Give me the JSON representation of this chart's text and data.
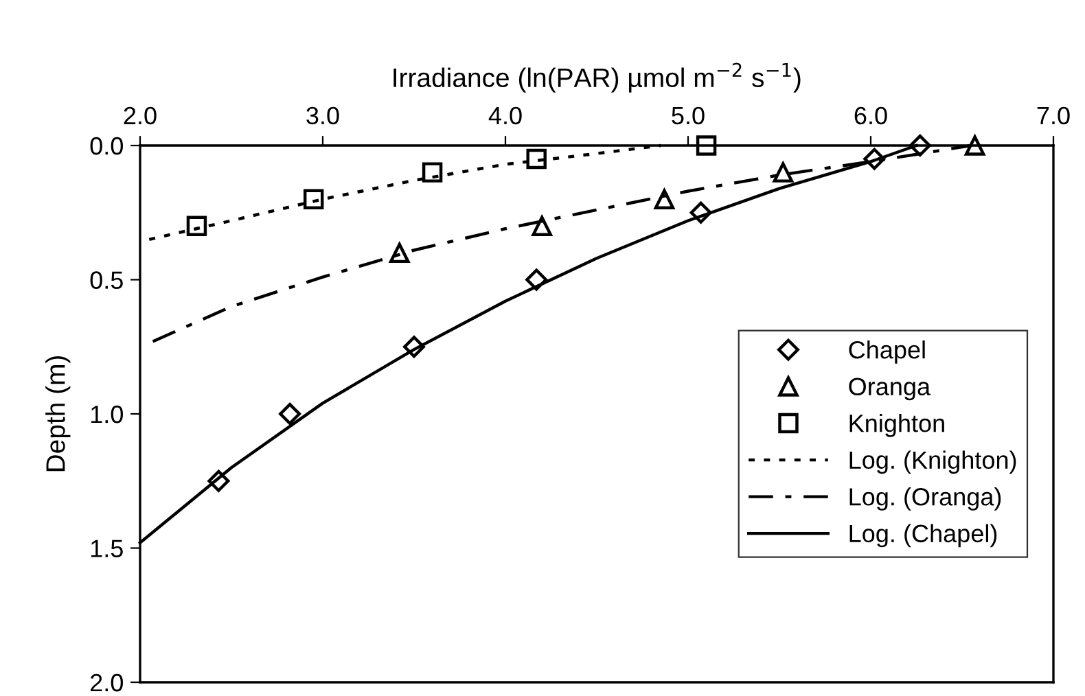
{
  "chart_data": {
    "type": "scatter",
    "xlabel": "Irradiance (ln(PAR) µmol m$^{−2}$ s$^{−1}$)",
    "ylabel": "Depth (m)",
    "xlim": [
      2.0,
      7.0
    ],
    "xticks": [
      {
        "value": 2,
        "label": "2.0"
      },
      {
        "value": 3,
        "label": "3.0"
      },
      {
        "value": 4,
        "label": "4.0"
      },
      {
        "value": 5,
        "label": "5.0"
      },
      {
        "value": 6,
        "label": "6.0"
      },
      {
        "value": 7,
        "label": "7.0"
      }
    ],
    "ylim": [
      2.0,
      0.0
    ],
    "yticks": [
      {
        "value": 0,
        "label": "0.0"
      },
      {
        "value": 0.5,
        "label": "0.5"
      },
      {
        "value": 1,
        "label": "1.0"
      },
      {
        "value": 1.5,
        "label": "1.5"
      },
      {
        "value": 2,
        "label": "2.0"
      }
    ],
    "grid": false,
    "legend": "bottom right",
    "series": [
      {
        "name": "Chapel",
        "marker": "diamond",
        "color": "#000000",
        "x": [
          2.43,
          2.82,
          3.5,
          4.17,
          5.07,
          6.02,
          6.27
        ],
        "values": [
          1.25,
          1.0,
          0.75,
          0.5,
          0.25,
          0.05,
          0.0
        ]
      },
      {
        "name": "Oranga",
        "marker": "triangle",
        "color": "#000000",
        "x": [
          3.42,
          4.2,
          4.87,
          5.52,
          6.57
        ],
        "values": [
          0.4,
          0.3,
          0.2,
          0.1,
          0.0
        ]
      },
      {
        "name": "Knighton",
        "marker": "square",
        "color": "#000000",
        "x": [
          2.31,
          2.95,
          3.6,
          4.17,
          5.1
        ],
        "values": [
          0.3,
          0.2,
          0.1,
          0.05,
          0.0
        ]
      },
      {
        "name": "Log. (Knighton)",
        "type": "line",
        "line_style": "dotted",
        "color": "#000000",
        "x": [
          2.05,
          2.5,
          3.0,
          3.5,
          4.0,
          4.5,
          4.85
        ],
        "values": [
          0.35,
          0.28,
          0.2,
          0.13,
          0.07,
          0.03,
          0.0
        ]
      },
      {
        "name": "Log. (Oranga)",
        "type": "line",
        "line_style": "dashdot",
        "color": "#000000",
        "x": [
          2.07,
          2.5,
          3.0,
          3.5,
          4.0,
          4.5,
          5.0,
          5.5,
          6.0,
          6.55
        ],
        "values": [
          0.73,
          0.6,
          0.49,
          0.39,
          0.31,
          0.24,
          0.17,
          0.11,
          0.06,
          0.0
        ]
      },
      {
        "name": "Log. (Chapel)",
        "type": "line",
        "line_style": "solid",
        "color": "#000000",
        "x": [
          2.0,
          2.5,
          3.0,
          3.5,
          4.0,
          4.5,
          5.0,
          5.5,
          6.0,
          6.25
        ],
        "values": [
          1.48,
          1.2,
          0.96,
          0.76,
          0.58,
          0.42,
          0.28,
          0.16,
          0.06,
          0.0
        ]
      }
    ]
  }
}
